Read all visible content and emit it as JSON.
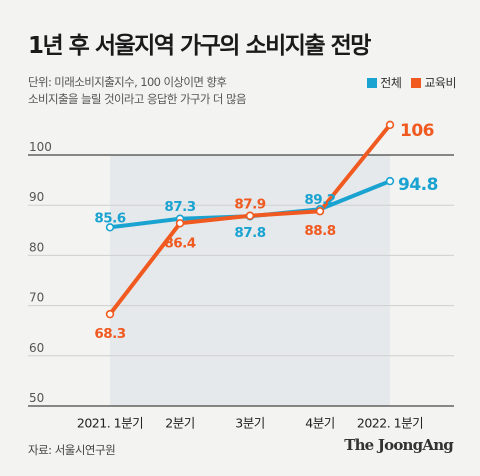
{
  "title": "1년 후 서울지역 가구의 소비지출 전망",
  "subtitle_lines": [
    "단위: 미래소비지출지수, 100 이상이면 향후",
    "소비지출을 늘릴 것이라고 응답한 가구가 더 많음"
  ],
  "source": "자료: 서울시연구원",
  "brand": "The JoongAng",
  "colors": {
    "전체": "#1aa3d1",
    "교육비": "#f0591f",
    "area": "#e6e9eb"
  },
  "chart_data": {
    "type": "line",
    "title": "1년 후 서울지역 가구의 소비지출 전망",
    "categories": [
      "2021. 1분기",
      "2분기",
      "3분기",
      "4분기",
      "2022. 1분기"
    ],
    "series": [
      {
        "name": "전체",
        "values": [
          85.6,
          87.3,
          87.8,
          89.2,
          94.8
        ],
        "color": "#1aa3d1"
      },
      {
        "name": "교육비",
        "values": [
          68.3,
          86.4,
          87.9,
          88.8,
          106
        ],
        "color": "#f0591f"
      }
    ],
    "ylim": [
      50,
      106
    ],
    "yticks": [
      50,
      60,
      70,
      80,
      90,
      100
    ],
    "reference_line": 100,
    "grid": true,
    "legend": "top-right",
    "xlabel": "",
    "ylabel": ""
  }
}
